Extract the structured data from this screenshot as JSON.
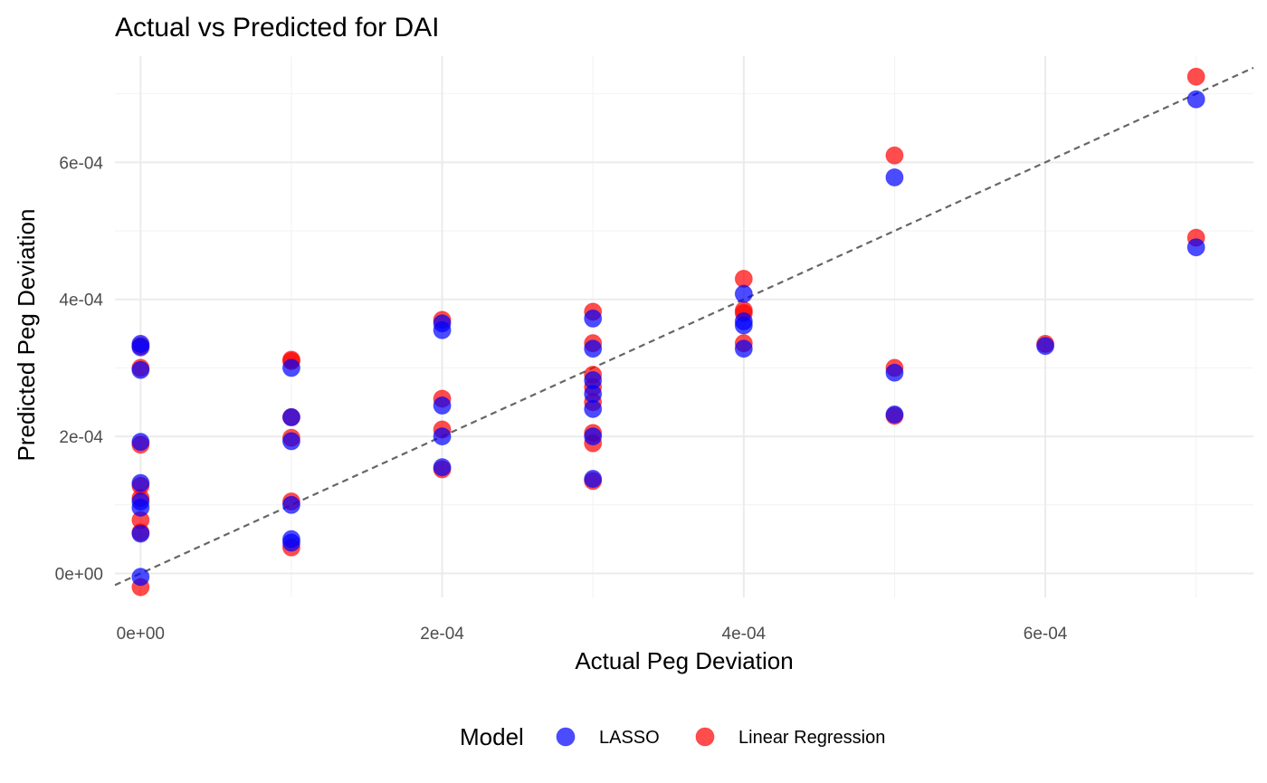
{
  "chart_data": {
    "type": "scatter",
    "title": "Actual vs Predicted for DAI",
    "xlabel": "Actual Peg Deviation",
    "ylabel": "Predicted Peg Deviation",
    "xlim": [
      -1.7e-05,
      0.000738
    ],
    "ylim": [
      -3.5e-05,
      0.000755
    ],
    "x_ticks": [
      {
        "value": 0,
        "label": "0e+00"
      },
      {
        "value": 0.0002,
        "label": "2e-04"
      },
      {
        "value": 0.0004,
        "label": "4e-04"
      },
      {
        "value": 0.0006,
        "label": "6e-04"
      }
    ],
    "x_minor_ticks": [
      0.0001,
      0.0003,
      0.0005,
      0.0007
    ],
    "y_ticks": [
      {
        "value": 0,
        "label": "0e+00"
      },
      {
        "value": 0.0002,
        "label": "2e-04"
      },
      {
        "value": 0.0004,
        "label": "4e-04"
      },
      {
        "value": 0.0006,
        "label": "6e-04"
      }
    ],
    "y_minor_ticks": [
      0.0001,
      0.0003,
      0.0005,
      0.0007
    ],
    "grid": true,
    "reference_line": {
      "style": "dashed",
      "slope": 1,
      "intercept": 0,
      "color": "#666666"
    },
    "legend": {
      "title": "Model",
      "position": "bottom",
      "entries": [
        {
          "label": "LASSO",
          "color": "#0000ff"
        },
        {
          "label": "Linear Regression",
          "color": "#ff0000"
        }
      ]
    },
    "series": [
      {
        "name": "Linear Regression",
        "color": "#ff0000",
        "opacity": 0.7,
        "points": [
          [
            0,
            0.000332
          ],
          [
            0,
            0.0003
          ],
          [
            0,
            0.000188
          ],
          [
            0,
            0.000128
          ],
          [
            0,
            0.00011
          ],
          [
            0,
            7.8e-05
          ],
          [
            0,
            6e-05
          ],
          [
            0,
            -2e-05
          ],
          [
            0.0001,
            0.000312
          ],
          [
            0.0001,
            0.00031
          ],
          [
            0.0001,
            0.000228
          ],
          [
            0.0001,
            0.000198
          ],
          [
            0.0001,
            0.000105
          ],
          [
            0.0001,
            3.8e-05
          ],
          [
            0.0002,
            0.00037
          ],
          [
            0.0002,
            0.000255
          ],
          [
            0.0002,
            0.00021
          ],
          [
            0.0002,
            0.000152
          ],
          [
            0.0003,
            0.000382
          ],
          [
            0.0003,
            0.000336
          ],
          [
            0.0003,
            0.00029
          ],
          [
            0.0003,
            0.000272
          ],
          [
            0.0003,
            0.00025
          ],
          [
            0.0003,
            0.000205
          ],
          [
            0.0003,
            0.00019
          ],
          [
            0.0003,
            0.000135
          ],
          [
            0.0004,
            0.00043
          ],
          [
            0.0004,
            0.000384
          ],
          [
            0.0004,
            0.00038
          ],
          [
            0.0004,
            0.000336
          ],
          [
            0.0005,
            0.00061
          ],
          [
            0.0005,
            0.0003
          ],
          [
            0.0005,
            0.00023
          ],
          [
            0.0006,
            0.000335
          ],
          [
            0.0007,
            0.000725
          ],
          [
            0.0007,
            0.00049
          ]
        ]
      },
      {
        "name": "LASSO",
        "color": "#0000ff",
        "opacity": 0.7,
        "points": [
          [
            0,
            0.000335
          ],
          [
            0,
            0.00033
          ],
          [
            0,
            0.000297
          ],
          [
            0,
            0.000192
          ],
          [
            0,
            0.000132
          ],
          [
            0,
            0.000105
          ],
          [
            0,
            9.6e-05
          ],
          [
            0,
            5.8e-05
          ],
          [
            0,
            -5e-06
          ],
          [
            0.0001,
            0.0003
          ],
          [
            0.0001,
            0.000228
          ],
          [
            0.0001,
            0.000193
          ],
          [
            0.0001,
            0.0001
          ],
          [
            0.0001,
            5e-05
          ],
          [
            0.0001,
            4.5e-05
          ],
          [
            0.0002,
            0.000365
          ],
          [
            0.0002,
            0.000355
          ],
          [
            0.0002,
            0.000245
          ],
          [
            0.0002,
            0.0002
          ],
          [
            0.0002,
            0.000155
          ],
          [
            0.0003,
            0.000372
          ],
          [
            0.0003,
            0.000328
          ],
          [
            0.0003,
            0.000282
          ],
          [
            0.0003,
            0.000262
          ],
          [
            0.0003,
            0.00024
          ],
          [
            0.0003,
            0.0002
          ],
          [
            0.0003,
            0.000138
          ],
          [
            0.0004,
            0.000408
          ],
          [
            0.0004,
            0.000368
          ],
          [
            0.0004,
            0.000362
          ],
          [
            0.0004,
            0.000328
          ],
          [
            0.0005,
            0.000578
          ],
          [
            0.0005,
            0.000293
          ],
          [
            0.0005,
            0.000232
          ],
          [
            0.0006,
            0.000332
          ],
          [
            0.0007,
            0.000692
          ],
          [
            0.0007,
            0.000476
          ]
        ]
      }
    ]
  }
}
